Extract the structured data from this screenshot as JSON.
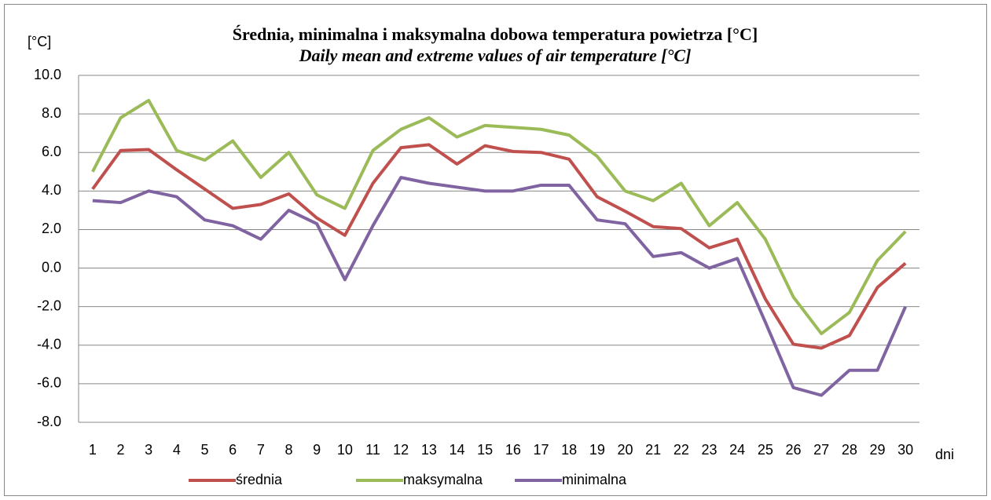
{
  "chart_data": {
    "type": "line",
    "title": "Średnia, minimalna i maksymalna dobowa temperatura powietrza [°C]",
    "subtitle": "Daily mean and extreme values of air temperature [°C]",
    "y_label": "[°C]",
    "x_label": "dni",
    "categories": [
      "1",
      "2",
      "3",
      "4",
      "5",
      "6",
      "7",
      "8",
      "9",
      "10",
      "11",
      "12",
      "13",
      "14",
      "15",
      "16",
      "17",
      "18",
      "19",
      "20",
      "21",
      "22",
      "23",
      "24",
      "25",
      "26",
      "27",
      "28",
      "29",
      "30"
    ],
    "series": [
      {
        "name": "średnia",
        "color": "#c0504d",
        "values": [
          4.1,
          6.1,
          6.15,
          5.1,
          4.1,
          3.1,
          3.3,
          3.85,
          2.6,
          1.7,
          4.4,
          6.25,
          6.4,
          5.4,
          6.35,
          6.05,
          6.0,
          5.65,
          3.7,
          2.95,
          2.15,
          2.05,
          1.05,
          1.5,
          -1.6,
          -3.95,
          -4.15,
          -3.5,
          -1.0,
          0.25
        ]
      },
      {
        "name": "maksymalna",
        "color": "#9bbb59",
        "values": [
          5.0,
          7.8,
          8.7,
          6.1,
          5.6,
          6.6,
          4.7,
          6.0,
          3.8,
          3.1,
          6.1,
          7.2,
          7.8,
          6.8,
          7.4,
          7.3,
          7.2,
          6.9,
          5.8,
          4.0,
          3.5,
          4.4,
          2.2,
          3.4,
          1.5,
          -1.5,
          -3.4,
          -2.3,
          0.4,
          1.9
        ]
      },
      {
        "name": "minimalna",
        "color": "#8064a2",
        "values": [
          3.5,
          3.4,
          4.0,
          3.7,
          2.5,
          2.2,
          1.5,
          3.0,
          2.3,
          -0.6,
          2.2,
          4.7,
          4.4,
          4.2,
          4.0,
          4.0,
          4.3,
          4.3,
          2.5,
          2.3,
          0.6,
          0.8,
          0.0,
          0.5,
          -2.8,
          -6.2,
          -6.6,
          -5.3,
          -5.3,
          -2.0
        ]
      }
    ],
    "ylim": [
      -8,
      10
    ],
    "yticks": [
      {
        "value": -8,
        "label": "-8.0"
      },
      {
        "value": -6,
        "label": "-6.0"
      },
      {
        "value": -4,
        "label": "-4.0"
      },
      {
        "value": -2,
        "label": "-2.0"
      },
      {
        "value": 0,
        "label": "0.0"
      },
      {
        "value": 2,
        "label": "2.0"
      },
      {
        "value": 4,
        "label": "4.0"
      },
      {
        "value": 6,
        "label": "6.0"
      },
      {
        "value": 8,
        "label": "8.0"
      },
      {
        "value": 10,
        "label": "10.0"
      }
    ],
    "grid": true,
    "legend": "bottom"
  }
}
